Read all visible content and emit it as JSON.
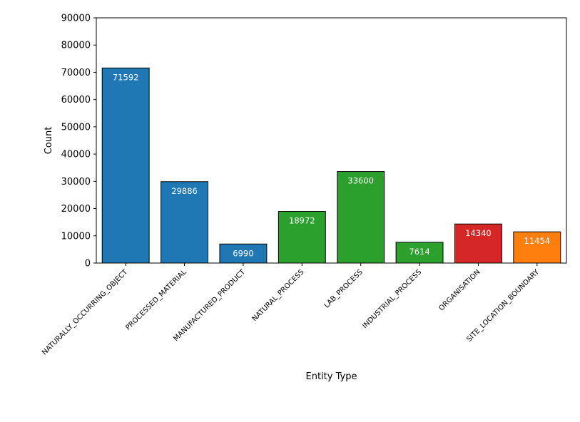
{
  "chart_data": {
    "type": "bar",
    "title": "",
    "xlabel": "Entity Type",
    "ylabel": "Count",
    "ylim": [
      0,
      90000
    ],
    "yticks": [
      0,
      10000,
      20000,
      30000,
      40000,
      50000,
      60000,
      70000,
      80000,
      90000
    ],
    "ytick_labels": [
      "0",
      "10000",
      "20000",
      "30000",
      "40000",
      "50000",
      "60000",
      "70000",
      "80000",
      "90000"
    ],
    "categories": [
      "NATURALLY_OCCURRING_OBJECT",
      "PROCESSED_MATERIAL",
      "MANUFACTURED_PRODUCT",
      "NATURAL_PROCESS",
      "LAB_PROCESS",
      "INDUSTRIAL_PROCESS",
      "ORGANISATION",
      "SITE_LOCATION_BOUNDARY"
    ],
    "values": [
      71592,
      29886,
      6990,
      18972,
      33600,
      7614,
      14340,
      11454
    ],
    "data_labels": [
      "71592",
      "29886",
      "6990",
      "18972",
      "33600",
      "7614",
      "14340",
      "11454"
    ],
    "colors": [
      "#1f77b4",
      "#1f77b4",
      "#1f77b4",
      "#2ca02c",
      "#2ca02c",
      "#2ca02c",
      "#d62728",
      "#ff7f0e"
    ],
    "grid": false,
    "legend": "none"
  }
}
